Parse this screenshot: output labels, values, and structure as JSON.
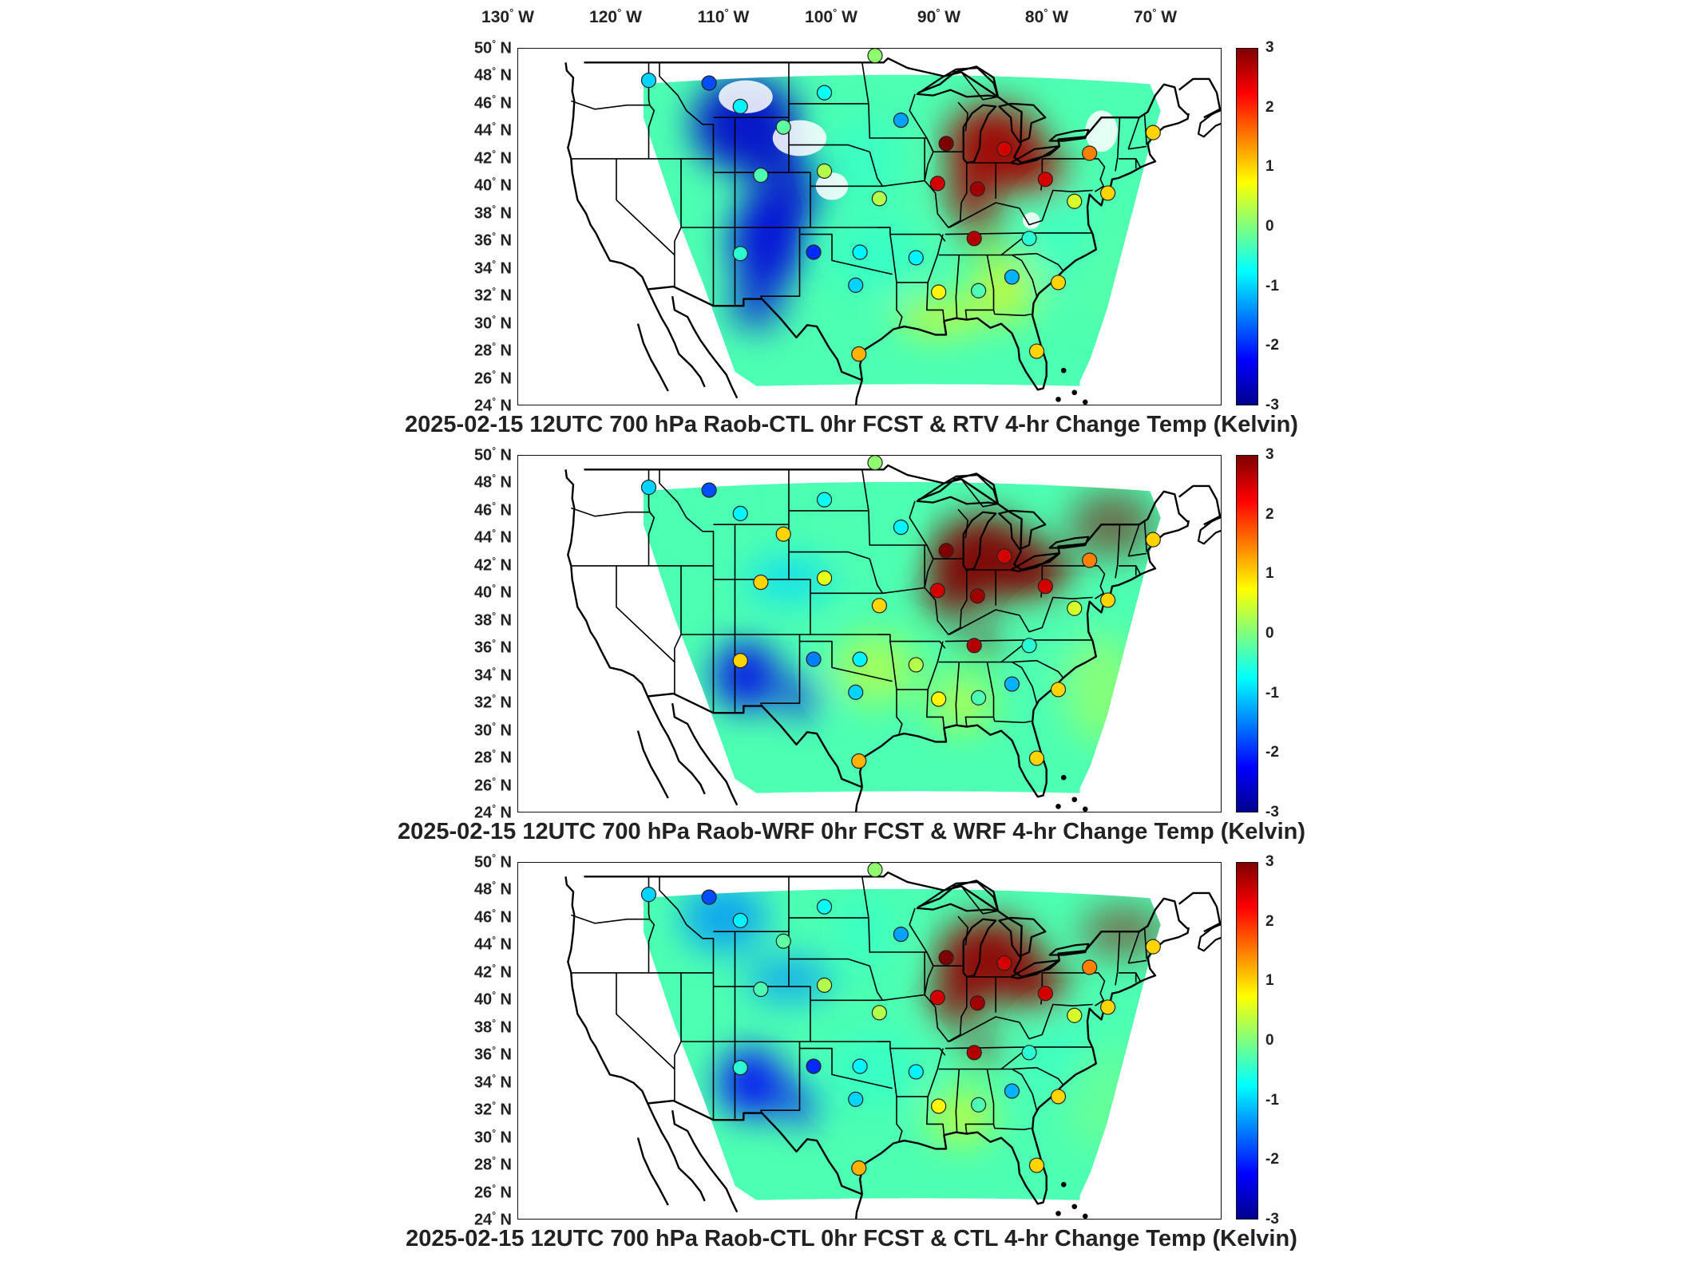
{
  "longitude_labels": [
    "130",
    "120",
    "110",
    "100",
    "90",
    "80",
    "70"
  ],
  "lon_unit": "W",
  "latitude_labels": [
    "50",
    "48",
    "46",
    "44",
    "42",
    "40",
    "38",
    "36",
    "34",
    "32",
    "30",
    "28",
    "26",
    "24"
  ],
  "lat_unit": "N",
  "colorbar": {
    "ticks": [
      "3",
      "2",
      "1",
      "0",
      "-1",
      "-2",
      "-3"
    ],
    "range": [
      -3,
      3
    ],
    "colormap": "jet",
    "colors": [
      "#00008f",
      "#0000ff",
      "#007fff",
      "#00ffff",
      "#7fff7f",
      "#ffff00",
      "#ff7f00",
      "#ff0000",
      "#7f0000"
    ]
  },
  "panels": [
    {
      "title": "2025-02-15 12UTC 700 hPa Raob-CTL 0hr FCST & RTV 4-hr Change Temp (Kelvin)",
      "field": {
        "great_lakes": 2.8,
        "northern_plains": -2.6,
        "southwest": -2.5,
        "east_coast": -0.5,
        "gulf": 0.8,
        "atlantic": -0.2
      },
      "stations": [
        {
          "lon": -117.0,
          "lat": 47.7,
          "value": -1.0
        },
        {
          "lon": -111.4,
          "lat": 47.5,
          "value": -1.8
        },
        {
          "lon": -108.5,
          "lat": 45.8,
          "value": -0.8
        },
        {
          "lon": -104.5,
          "lat": 44.3,
          "value": -0.2
        },
        {
          "lon": -100.7,
          "lat": 46.8,
          "value": -0.7
        },
        {
          "lon": -93.6,
          "lat": 44.8,
          "value": -1.3
        },
        {
          "lon": -89.4,
          "lat": 43.1,
          "value": 3.0
        },
        {
          "lon": -84.0,
          "lat": 42.7,
          "value": 2.5
        },
        {
          "lon": -76.1,
          "lat": 42.4,
          "value": 1.5
        },
        {
          "lon": -70.2,
          "lat": 43.9,
          "value": 1.0
        },
        {
          "lon": -106.6,
          "lat": 40.8,
          "value": -0.3
        },
        {
          "lon": -100.7,
          "lat": 41.1,
          "value": 0.3
        },
        {
          "lon": -95.6,
          "lat": 39.1,
          "value": 0.3
        },
        {
          "lon": -90.2,
          "lat": 40.2,
          "value": 2.5
        },
        {
          "lon": -86.5,
          "lat": 39.8,
          "value": 2.8
        },
        {
          "lon": -80.2,
          "lat": 40.5,
          "value": 2.5
        },
        {
          "lon": -77.5,
          "lat": 38.9,
          "value": 0.5
        },
        {
          "lon": -74.4,
          "lat": 39.5,
          "value": 1.0
        },
        {
          "lon": -108.5,
          "lat": 35.1,
          "value": -0.5
        },
        {
          "lon": -101.7,
          "lat": 35.2,
          "value": -2.0
        },
        {
          "lon": -97.4,
          "lat": 35.2,
          "value": -0.8
        },
        {
          "lon": -92.2,
          "lat": 34.8,
          "value": -0.8
        },
        {
          "lon": -86.8,
          "lat": 36.2,
          "value": 2.7
        },
        {
          "lon": -81.7,
          "lat": 36.2,
          "value": -0.5
        },
        {
          "lon": -97.8,
          "lat": 32.8,
          "value": -1.0
        },
        {
          "lon": -90.1,
          "lat": 32.3,
          "value": 0.8
        },
        {
          "lon": -86.4,
          "lat": 32.4,
          "value": -0.3
        },
        {
          "lon": -83.3,
          "lat": 33.4,
          "value": -1.2
        },
        {
          "lon": -79.0,
          "lat": 33.0,
          "value": 1.0
        },
        {
          "lon": -97.5,
          "lat": 27.8,
          "value": 1.2
        },
        {
          "lon": -81.0,
          "lat": 28.0,
          "value": 1.0
        },
        {
          "lon": -96.0,
          "lat": 49.5,
          "value": 0.1
        }
      ]
    },
    {
      "title": "2025-02-15 12UTC 700 hPa Raob-WRF 0hr FCST & WRF 4-hr Change Temp (Kelvin)",
      "field": {
        "great_lakes": 3.0,
        "northern_plains": -1.0,
        "southwest": -2.4,
        "east_coast": -0.3,
        "gulf": 0.6,
        "atlantic": 0.3
      },
      "stations": [
        {
          "lon": -117.0,
          "lat": 47.7,
          "value": -1.0
        },
        {
          "lon": -111.4,
          "lat": 47.5,
          "value": -1.8
        },
        {
          "lon": -108.5,
          "lat": 45.8,
          "value": -0.8
        },
        {
          "lon": -104.5,
          "lat": 44.3,
          "value": 1.0
        },
        {
          "lon": -100.7,
          "lat": 46.8,
          "value": -0.7
        },
        {
          "lon": -93.6,
          "lat": 44.8,
          "value": -0.8
        },
        {
          "lon": -89.4,
          "lat": 43.1,
          "value": 3.0
        },
        {
          "lon": -84.0,
          "lat": 42.7,
          "value": 2.5
        },
        {
          "lon": -76.1,
          "lat": 42.4,
          "value": 1.5
        },
        {
          "lon": -70.2,
          "lat": 43.9,
          "value": 1.0
        },
        {
          "lon": -106.6,
          "lat": 40.8,
          "value": 1.0
        },
        {
          "lon": -100.7,
          "lat": 41.1,
          "value": 0.6
        },
        {
          "lon": -95.6,
          "lat": 39.1,
          "value": 1.0
        },
        {
          "lon": -90.2,
          "lat": 40.2,
          "value": 2.5
        },
        {
          "lon": -86.5,
          "lat": 39.8,
          "value": 2.8
        },
        {
          "lon": -80.2,
          "lat": 40.5,
          "value": 2.5
        },
        {
          "lon": -77.5,
          "lat": 38.9,
          "value": 0.5
        },
        {
          "lon": -74.4,
          "lat": 39.5,
          "value": 1.0
        },
        {
          "lon": -108.5,
          "lat": 35.1,
          "value": 1.0
        },
        {
          "lon": -101.7,
          "lat": 35.2,
          "value": -1.5
        },
        {
          "lon": -97.4,
          "lat": 35.2,
          "value": -0.8
        },
        {
          "lon": -92.2,
          "lat": 34.8,
          "value": 0.3
        },
        {
          "lon": -86.8,
          "lat": 36.2,
          "value": 2.7
        },
        {
          "lon": -81.7,
          "lat": 36.2,
          "value": -0.5
        },
        {
          "lon": -97.8,
          "lat": 32.8,
          "value": -1.0
        },
        {
          "lon": -90.1,
          "lat": 32.3,
          "value": 0.8
        },
        {
          "lon": -86.4,
          "lat": 32.4,
          "value": -0.3
        },
        {
          "lon": -83.3,
          "lat": 33.4,
          "value": -1.2
        },
        {
          "lon": -79.0,
          "lat": 33.0,
          "value": 1.0
        },
        {
          "lon": -97.5,
          "lat": 27.8,
          "value": 1.2
        },
        {
          "lon": -81.0,
          "lat": 28.0,
          "value": 1.0
        },
        {
          "lon": -96.0,
          "lat": 49.5,
          "value": 0.1
        }
      ]
    },
    {
      "title": "2025-02-15 12UTC 700 hPa Raob-CTL 0hr FCST & CTL 4-hr Change Temp (Kelvin)",
      "field": {
        "great_lakes": 2.9,
        "northern_plains": -1.4,
        "southwest": -2.3,
        "east_coast": -0.5,
        "gulf": 0.7,
        "atlantic": 0.0
      },
      "stations": [
        {
          "lon": -117.0,
          "lat": 47.7,
          "value": -1.0
        },
        {
          "lon": -111.4,
          "lat": 47.5,
          "value": -1.8
        },
        {
          "lon": -108.5,
          "lat": 45.8,
          "value": -0.8
        },
        {
          "lon": -104.5,
          "lat": 44.3,
          "value": -0.2
        },
        {
          "lon": -100.7,
          "lat": 46.8,
          "value": -0.7
        },
        {
          "lon": -93.6,
          "lat": 44.8,
          "value": -1.3
        },
        {
          "lon": -89.4,
          "lat": 43.1,
          "value": 3.0
        },
        {
          "lon": -84.0,
          "lat": 42.7,
          "value": 2.5
        },
        {
          "lon": -76.1,
          "lat": 42.4,
          "value": 1.5
        },
        {
          "lon": -70.2,
          "lat": 43.9,
          "value": 1.0
        },
        {
          "lon": -106.6,
          "lat": 40.8,
          "value": -0.3
        },
        {
          "lon": -100.7,
          "lat": 41.1,
          "value": 0.3
        },
        {
          "lon": -95.6,
          "lat": 39.1,
          "value": 0.3
        },
        {
          "lon": -90.2,
          "lat": 40.2,
          "value": 2.5
        },
        {
          "lon": -86.5,
          "lat": 39.8,
          "value": 2.8
        },
        {
          "lon": -80.2,
          "lat": 40.5,
          "value": 2.5
        },
        {
          "lon": -77.5,
          "lat": 38.9,
          "value": 0.5
        },
        {
          "lon": -74.4,
          "lat": 39.5,
          "value": 1.0
        },
        {
          "lon": -108.5,
          "lat": 35.1,
          "value": -0.5
        },
        {
          "lon": -101.7,
          "lat": 35.2,
          "value": -2.0
        },
        {
          "lon": -97.4,
          "lat": 35.2,
          "value": -0.8
        },
        {
          "lon": -92.2,
          "lat": 34.8,
          "value": -0.8
        },
        {
          "lon": -86.8,
          "lat": 36.2,
          "value": 2.7
        },
        {
          "lon": -81.7,
          "lat": 36.2,
          "value": -0.5
        },
        {
          "lon": -97.8,
          "lat": 32.8,
          "value": -1.0
        },
        {
          "lon": -90.1,
          "lat": 32.3,
          "value": 0.8
        },
        {
          "lon": -86.4,
          "lat": 32.4,
          "value": -0.3
        },
        {
          "lon": -83.3,
          "lat": 33.4,
          "value": -1.2
        },
        {
          "lon": -79.0,
          "lat": 33.0,
          "value": 1.0
        },
        {
          "lon": -97.5,
          "lat": 27.8,
          "value": 1.2
        },
        {
          "lon": -81.0,
          "lat": 28.0,
          "value": 1.0
        },
        {
          "lon": -96.0,
          "lat": 49.5,
          "value": 0.1
        }
      ]
    }
  ]
}
